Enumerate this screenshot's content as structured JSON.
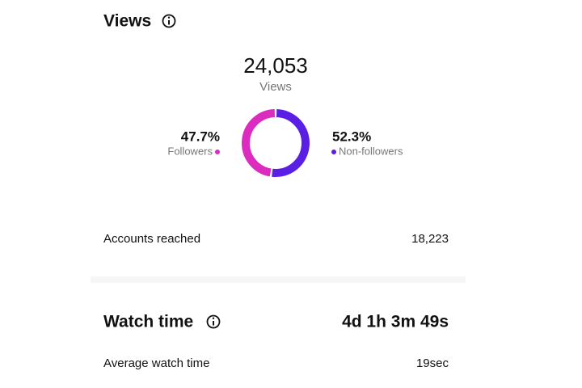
{
  "views": {
    "title": "Views",
    "total": "24,053",
    "total_label": "Views"
  },
  "chart_data": {
    "type": "pie",
    "categories": [
      "Followers",
      "Non-followers"
    ],
    "values": [
      47.7,
      52.3
    ],
    "value_labels": [
      "47.7%",
      "52.3%"
    ],
    "colors": [
      "#dc2cc0",
      "#5a1fe4"
    ]
  },
  "accounts_reached": {
    "label": "Accounts reached",
    "value": "18,223"
  },
  "watch_time": {
    "title": "Watch time",
    "value": "4d 1h 3m 49s"
  },
  "average_watch_time": {
    "label": "Average watch time",
    "value": "19sec"
  }
}
